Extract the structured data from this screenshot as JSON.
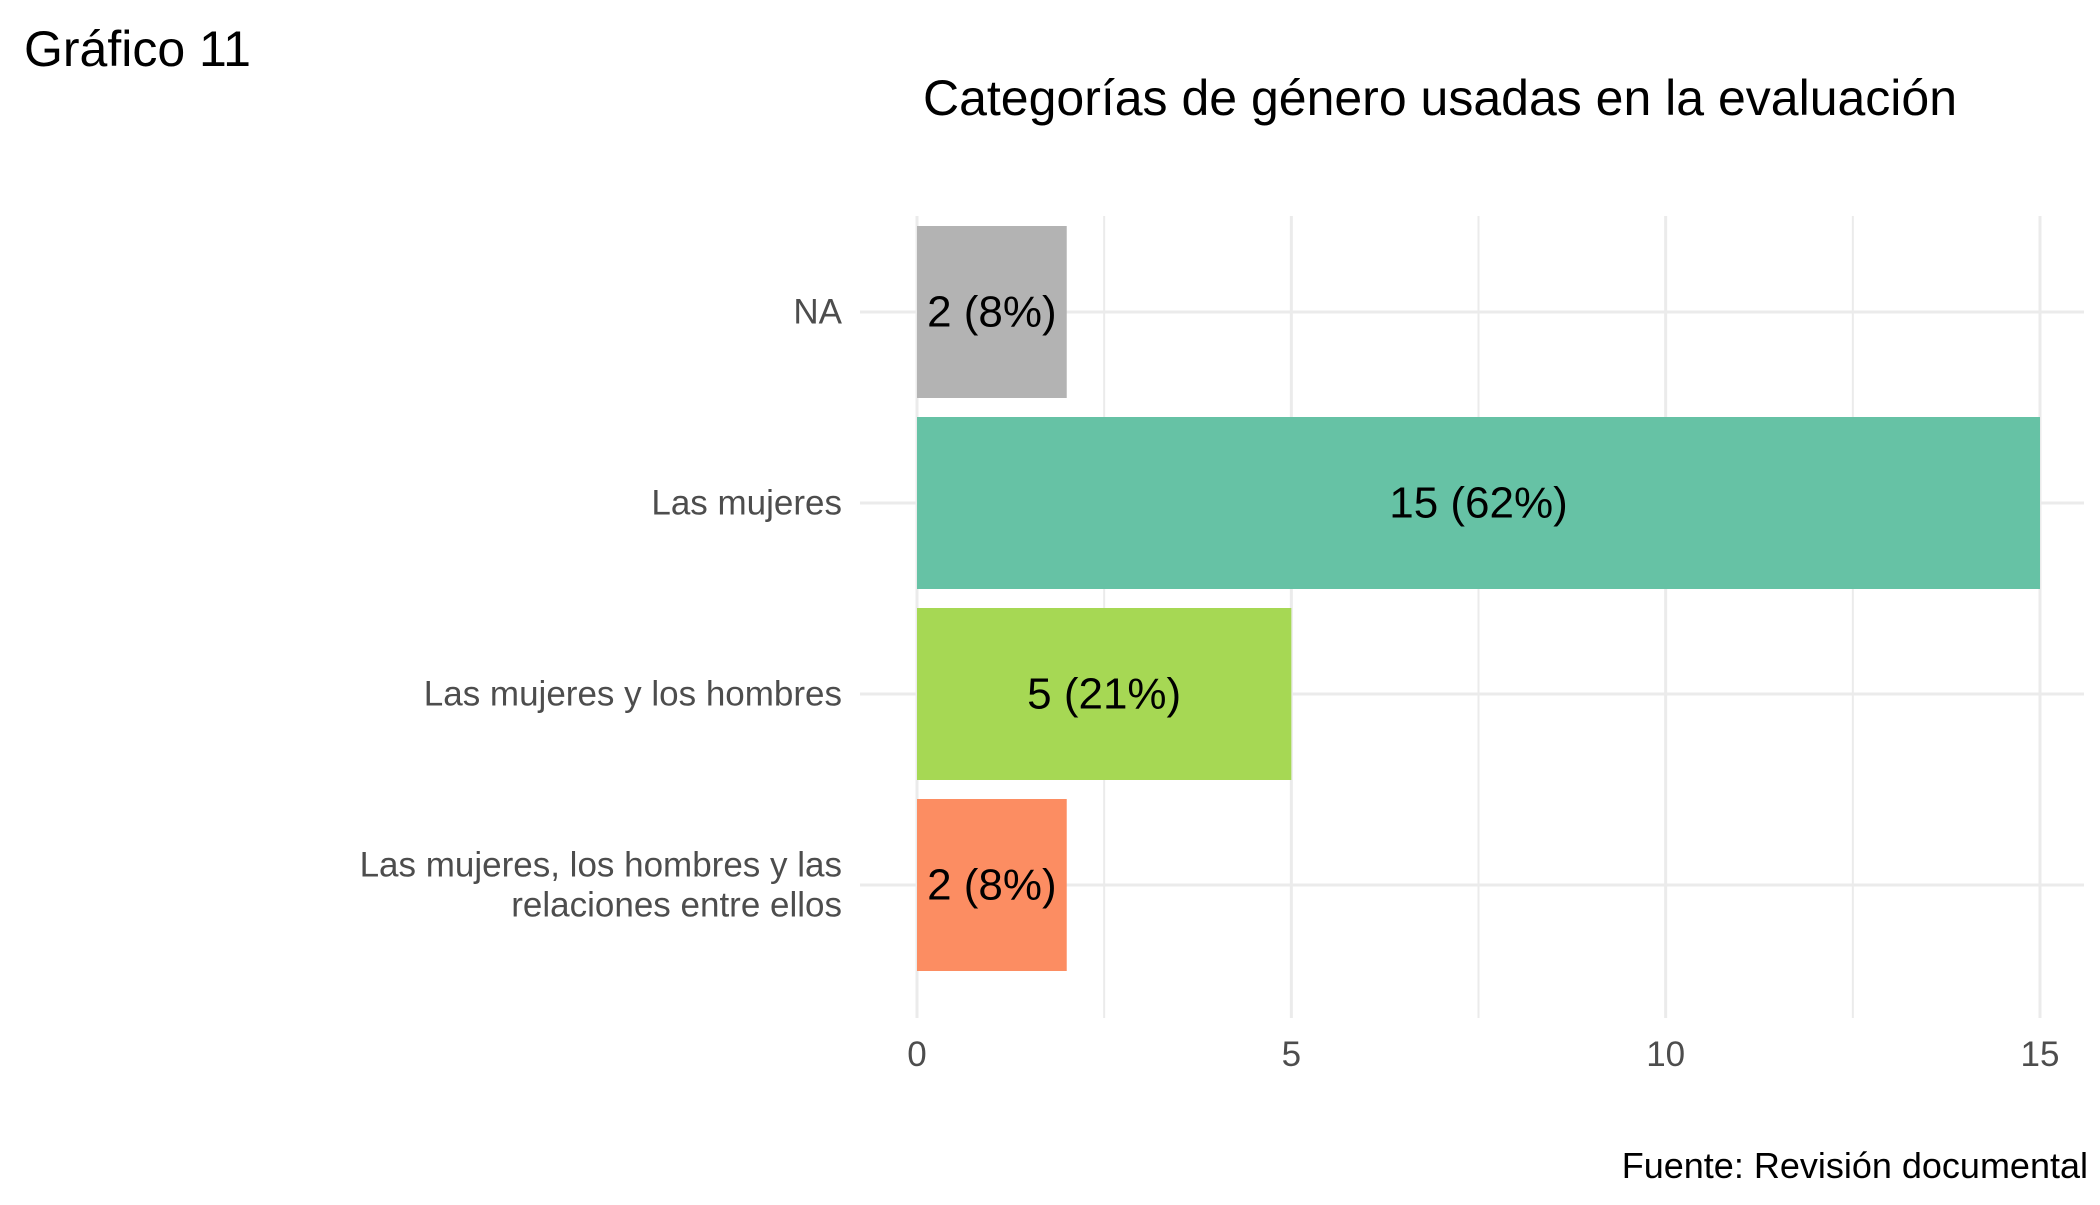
{
  "figure_label": "Gráfico 11",
  "source_note": "Fuente: Revisión documental",
  "chart_data": {
    "type": "bar",
    "orientation": "horizontal",
    "title": "Categorías de género usadas en la evaluación",
    "xlabel": "",
    "ylabel": "",
    "categories": [
      "NA",
      "Las mujeres",
      "Las mujeres y los hombres",
      "Las mujeres, los hombres y las relaciones entre ellos"
    ],
    "category_lines": [
      [
        "NA"
      ],
      [
        "Las mujeres"
      ],
      [
        "Las mujeres y los hombres"
      ],
      [
        "Las mujeres, los hombres y las",
        "relaciones entre ellos"
      ]
    ],
    "values": [
      2,
      15,
      5,
      2
    ],
    "data_labels": [
      "2 (8%)",
      "15 (62%)",
      "5 (21%)",
      "2 (8%)"
    ],
    "colors": [
      "#b3b3b3",
      "#66c2a5",
      "#a6d854",
      "#fc8d62"
    ],
    "xlim": [
      0,
      15
    ],
    "x_ticks": [
      0,
      5,
      10,
      15
    ],
    "x_tick_labels": [
      "0",
      "5",
      "10",
      "15"
    ],
    "grid": true,
    "legend": "none"
  }
}
